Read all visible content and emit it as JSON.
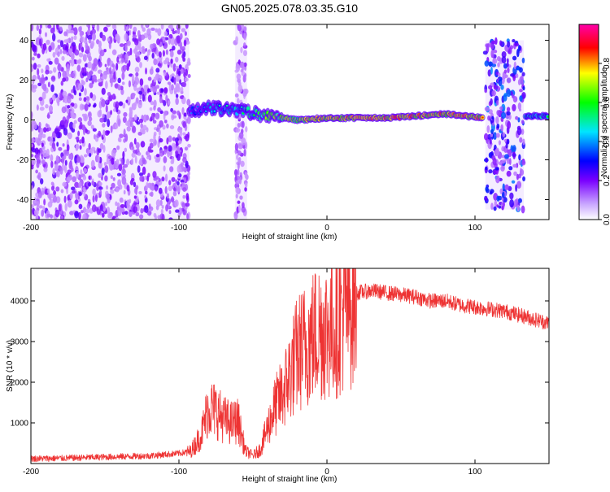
{
  "title": "GN05.2025.078.03.35.G10",
  "chart_data": [
    {
      "type": "heatmap",
      "xlabel": "Height of straight line (km)",
      "ylabel": "Frequency (Hz)",
      "xlim": [
        -200,
        150
      ],
      "ylim": [
        -50,
        48
      ],
      "xticks": [
        -200,
        -100,
        0,
        100
      ],
      "yticks": [
        -40,
        -20,
        0,
        20,
        40
      ],
      "colorbar": {
        "label": "Normalized spectral amplitude",
        "range": [
          0.0,
          1.0
        ],
        "ticks": [
          0.0,
          0.2,
          0.4,
          0.6,
          0.8
        ],
        "colormap": [
          "#ffffff",
          "#7a00ff",
          "#0000ff",
          "#00e5ff",
          "#00ff00",
          "#ffff00",
          "#ff0000",
          "#ff00aa"
        ]
      },
      "features": [
        {
          "name": "broadband noise",
          "x_range": [
            -200,
            -93
          ],
          "freq_range": [
            -50,
            48
          ],
          "amplitude": 0.1
        },
        {
          "name": "sparse noise column",
          "x_range": [
            -62,
            -54
          ],
          "freq_range": [
            -50,
            48
          ],
          "amplitude": 0.08
        },
        {
          "name": "signal trace",
          "x": [
            -93,
            -80,
            -60,
            -40,
            -20,
            0,
            40,
            80,
            106
          ],
          "freq": [
            4,
            6,
            5,
            2,
            0,
            1,
            1,
            3,
            1
          ],
          "amplitude": [
            0.35,
            0.45,
            0.5,
            0.7,
            0.8,
            0.85,
            0.9,
            0.88,
            0.85
          ]
        },
        {
          "name": "broadband noise",
          "x_range": [
            107,
            133
          ],
          "freq_range": [
            -45,
            40
          ],
          "amplitude": 0.18
        },
        {
          "name": "signal trace",
          "x": [
            134,
            150
          ],
          "freq": [
            2,
            2
          ],
          "amplitude": [
            0.55,
            0.55
          ]
        }
      ]
    },
    {
      "type": "line",
      "xlabel": "Height of straight line (km)",
      "ylabel": "SNR (10 * v/v)",
      "xlim": [
        -200,
        150
      ],
      "ylim": [
        0,
        4800
      ],
      "xticks": [
        -200,
        -100,
        0,
        100
      ],
      "yticks": [
        1000,
        2000,
        3000,
        4000
      ],
      "series": [
        {
          "color": "#ee3333",
          "x": [
            -200,
            -180,
            -160,
            -140,
            -120,
            -100,
            -92,
            -85,
            -80,
            -75,
            -70,
            -65,
            -60,
            -55,
            -50,
            -45,
            -40,
            -35,
            -30,
            -25,
            -20,
            -15,
            -10,
            -5,
            0,
            5,
            10,
            15,
            20,
            30,
            40,
            50,
            60,
            70,
            80,
            90,
            100,
            110,
            120,
            130,
            140,
            150
          ],
          "y": [
            120,
            130,
            150,
            170,
            190,
            250,
            300,
            700,
            1400,
            1300,
            1100,
            1000,
            1050,
            300,
            200,
            350,
            900,
            1400,
            1700,
            2200,
            2700,
            2900,
            3100,
            3300,
            3300,
            3400,
            3700,
            3900,
            4200,
            4250,
            4200,
            4150,
            4100,
            4000,
            4000,
            3900,
            3850,
            3800,
            3750,
            3650,
            3550,
            3450
          ]
        }
      ]
    }
  ]
}
